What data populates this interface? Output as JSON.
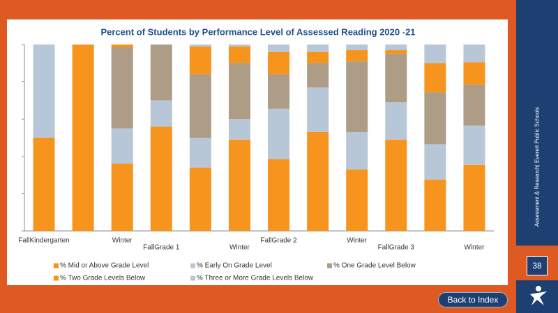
{
  "chart_data": {
    "type": "bar",
    "stacked": true,
    "title": "Percent of Students by Performance Level of Assessed Reading 2020 -21",
    "categories": [
      "FallKindergarten",
      null,
      "Winter",
      "FallGrade 1",
      null,
      "Winter",
      "FallGrade 2",
      null,
      "Winter",
      "FallGrade 3",
      null,
      "Winter"
    ],
    "series": [
      {
        "name": "% Mid or Above Grade Level",
        "color": "#f7941d",
        "values": [
          50,
          100,
          36,
          56,
          34,
          49,
          38.5,
          53,
          33,
          49,
          27.5,
          35.5
        ]
      },
      {
        "name": "% Early On Grade Level",
        "color": "#b8c7d8",
        "values": [
          50,
          0,
          19,
          14,
          16,
          11,
          27,
          24,
          20,
          20,
          19,
          21
        ]
      },
      {
        "name": "% One Grade Level Below",
        "color": "#ad9d87",
        "values": [
          0,
          0,
          43.5,
          30,
          34,
          30,
          18.5,
          13,
          38,
          26,
          28,
          22
        ]
      },
      {
        "name": "% Two Grade Levels Below",
        "color": "#f7941d",
        "values": [
          0,
          0,
          1.5,
          0,
          15,
          9,
          12,
          6,
          6,
          2,
          15.5,
          12
        ]
      },
      {
        "name": "% Three or More Grade Levels Below",
        "color": "#b8c7d8",
        "values": [
          0,
          0,
          0,
          0,
          1,
          1,
          4,
          4,
          3,
          3,
          10,
          9.5
        ]
      }
    ],
    "ylim": [
      0,
      100
    ],
    "yticks": [
      0,
      20,
      40,
      60,
      80,
      100
    ],
    "grid": false
  },
  "sidebar": {
    "text": "Assessment & Research| Everett Public Schools",
    "page_number": "38"
  },
  "button": {
    "label": "Back to Index"
  }
}
